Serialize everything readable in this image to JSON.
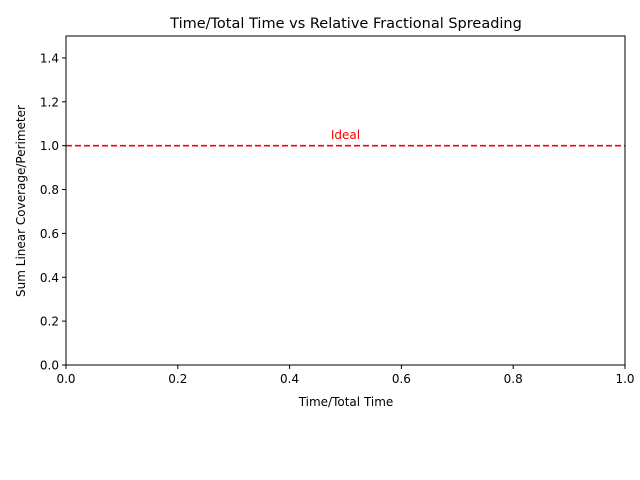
{
  "chart_data": {
    "type": "line",
    "title": "Time/Total Time vs Relative Fractional Spreading",
    "xlabel": "Time/Total Time",
    "ylabel": "Sum Linear Coverage/Perimeter",
    "xlim": [
      0.0,
      1.0
    ],
    "ylim": [
      0.0,
      1.5
    ],
    "xticks": [
      0.0,
      0.2,
      0.4,
      0.6,
      0.8,
      1.0
    ],
    "xtick_labels": [
      "0.0",
      "0.2",
      "0.4",
      "0.6",
      "0.8",
      "1.0"
    ],
    "yticks": [
      0.0,
      0.2,
      0.4,
      0.6,
      0.8,
      1.0,
      1.2,
      1.4
    ],
    "ytick_labels": [
      "0.0",
      "0.2",
      "0.4",
      "0.6",
      "0.8",
      "1.0",
      "1.2",
      "1.4"
    ],
    "grid": false,
    "series": [],
    "reference_lines": [
      {
        "orientation": "horizontal",
        "y": 1.0,
        "style": "dashed",
        "color": "#ff0000"
      }
    ],
    "annotations": [
      {
        "text": "Ideal",
        "x": 0.5,
        "y": 1.03,
        "color": "#ff0000"
      }
    ]
  }
}
